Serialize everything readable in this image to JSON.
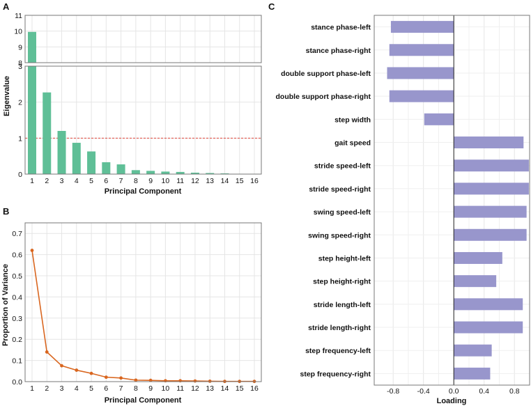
{
  "colors": {
    "eigen_bar": "#5fbf97",
    "variance_line": "#d9661f",
    "loading_bar": "#9896cc",
    "threshold": "#e0463a",
    "grid": "#e5e5e5",
    "frame": "#777777"
  },
  "chart_data": [
    {
      "panel": "A",
      "type": "bar",
      "xlabel": "Principal Component",
      "ylabel": "Eigenvalue",
      "categories": [
        "1",
        "2",
        "3",
        "4",
        "5",
        "6",
        "7",
        "8",
        "9",
        "10",
        "11",
        "12",
        "13",
        "14",
        "15",
        "16"
      ],
      "values": [
        9.95,
        2.27,
        1.2,
        0.87,
        0.63,
        0.33,
        0.27,
        0.11,
        0.09,
        0.07,
        0.06,
        0.04,
        0.03,
        0.02,
        0.01,
        0.01
      ],
      "y_lower_ticks": [
        "0",
        "1",
        "2",
        "3"
      ],
      "y_upper_ticks": [
        "8",
        "9",
        "10",
        "11"
      ],
      "axis_break": {
        "lower_range": [
          0,
          3
        ],
        "upper_range": [
          8,
          11
        ]
      },
      "threshold": 1
    },
    {
      "panel": "B",
      "type": "line",
      "xlabel": "Principal Component",
      "ylabel": "Proportion of Variance",
      "x": [
        1,
        2,
        3,
        4,
        5,
        6,
        7,
        8,
        9,
        10,
        11,
        12,
        13,
        14,
        15,
        16
      ],
      "values": [
        0.62,
        0.14,
        0.075,
        0.054,
        0.039,
        0.021,
        0.017,
        0.007,
        0.006,
        0.004,
        0.004,
        0.003,
        0.002,
        0.001,
        0.001,
        0.001
      ],
      "ylim": [
        0,
        0.75
      ],
      "y_ticks": [
        "0.0",
        "0.1",
        "0.2",
        "0.3",
        "0.4",
        "0.5",
        "0.6",
        "0.7"
      ],
      "x_ticks": [
        "1",
        "2",
        "3",
        "4",
        "5",
        "6",
        "7",
        "8",
        "9",
        "10",
        "11",
        "12",
        "13",
        "14",
        "15",
        "16"
      ]
    },
    {
      "panel": "C",
      "type": "bar",
      "orientation": "horizontal",
      "xlabel": "Loading",
      "xlim": [
        -1.05,
        1.0
      ],
      "x_ticks": [
        {
          "value": -0.8,
          "label": "-0.8"
        },
        {
          "value": -0.4,
          "label": "-0.4"
        },
        {
          "value": 0,
          "label": "0.0"
        },
        {
          "value": 0.4,
          "label": "0.4"
        },
        {
          "value": 0.8,
          "label": "0.8"
        }
      ],
      "categories": [
        "stance phase-left",
        "stance phase-right",
        "double support phase-left",
        "double support phase-right",
        "step width",
        "gait speed",
        "stride speed-left",
        "stride speed-right",
        "swing speed-left",
        "swing speed-right",
        "step height-left",
        "step height-right",
        "stride length-left",
        "stride length-right",
        "step frequency-left",
        "step frequency-right"
      ],
      "values": [
        -0.83,
        -0.85,
        -0.88,
        -0.85,
        -0.39,
        0.92,
        0.99,
        0.99,
        0.96,
        0.96,
        0.64,
        0.56,
        0.91,
        0.91,
        0.5,
        0.48
      ]
    }
  ]
}
